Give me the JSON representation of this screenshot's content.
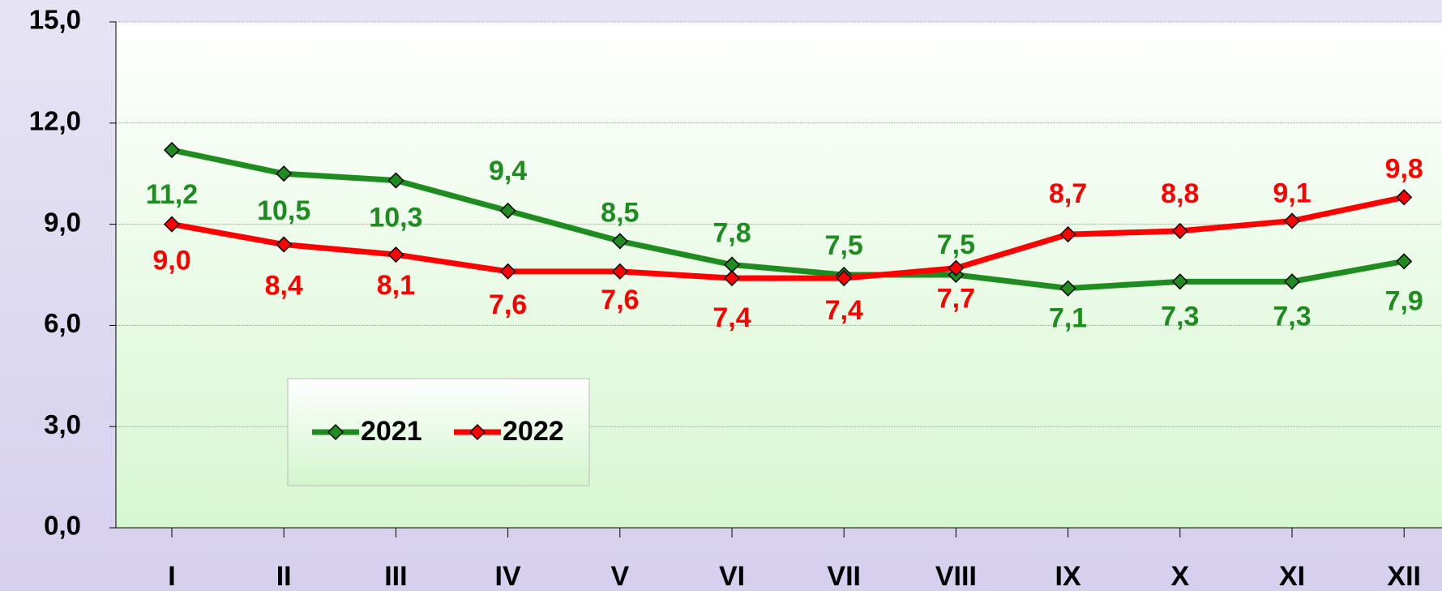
{
  "chart_data": {
    "type": "line",
    "categories": [
      "I",
      "II",
      "III",
      "IV",
      "V",
      "VI",
      "VII",
      "VIII",
      "IX",
      "X",
      "XI",
      "XII"
    ],
    "series": [
      {
        "name": "2021",
        "color": "#1e8c1e",
        "values": [
          11.2,
          10.5,
          10.3,
          9.4,
          8.5,
          7.8,
          7.5,
          7.5,
          7.1,
          7.3,
          7.3,
          7.9
        ],
        "value_labels": [
          "11,2",
          "10,5",
          "10,3",
          "9,4",
          "8,5",
          "7,8",
          "7,5",
          "7,5",
          "7,1",
          "7,3",
          "7,3",
          "7,9"
        ]
      },
      {
        "name": "2022",
        "color": "#ff0000",
        "values": [
          9.0,
          8.4,
          8.1,
          7.6,
          7.6,
          7.4,
          7.4,
          7.7,
          8.7,
          8.8,
          9.1,
          9.8
        ],
        "value_labels": [
          "9,0",
          "8,4",
          "8,1",
          "7,6",
          "7,6",
          "7,4",
          "7,4",
          "7,7",
          "8,7",
          "8,8",
          "9,1",
          "9,8"
        ]
      }
    ],
    "ylim": [
      0,
      15
    ],
    "yticks": [
      {
        "value": 0,
        "label": "0,0"
      },
      {
        "value": 3,
        "label": "3,0"
      },
      {
        "value": 6,
        "label": "6,0"
      },
      {
        "value": 9,
        "label": "9,0"
      },
      {
        "value": 12,
        "label": "12,0"
      },
      {
        "value": 15,
        "label": "15,0"
      }
    ],
    "grid": true
  }
}
